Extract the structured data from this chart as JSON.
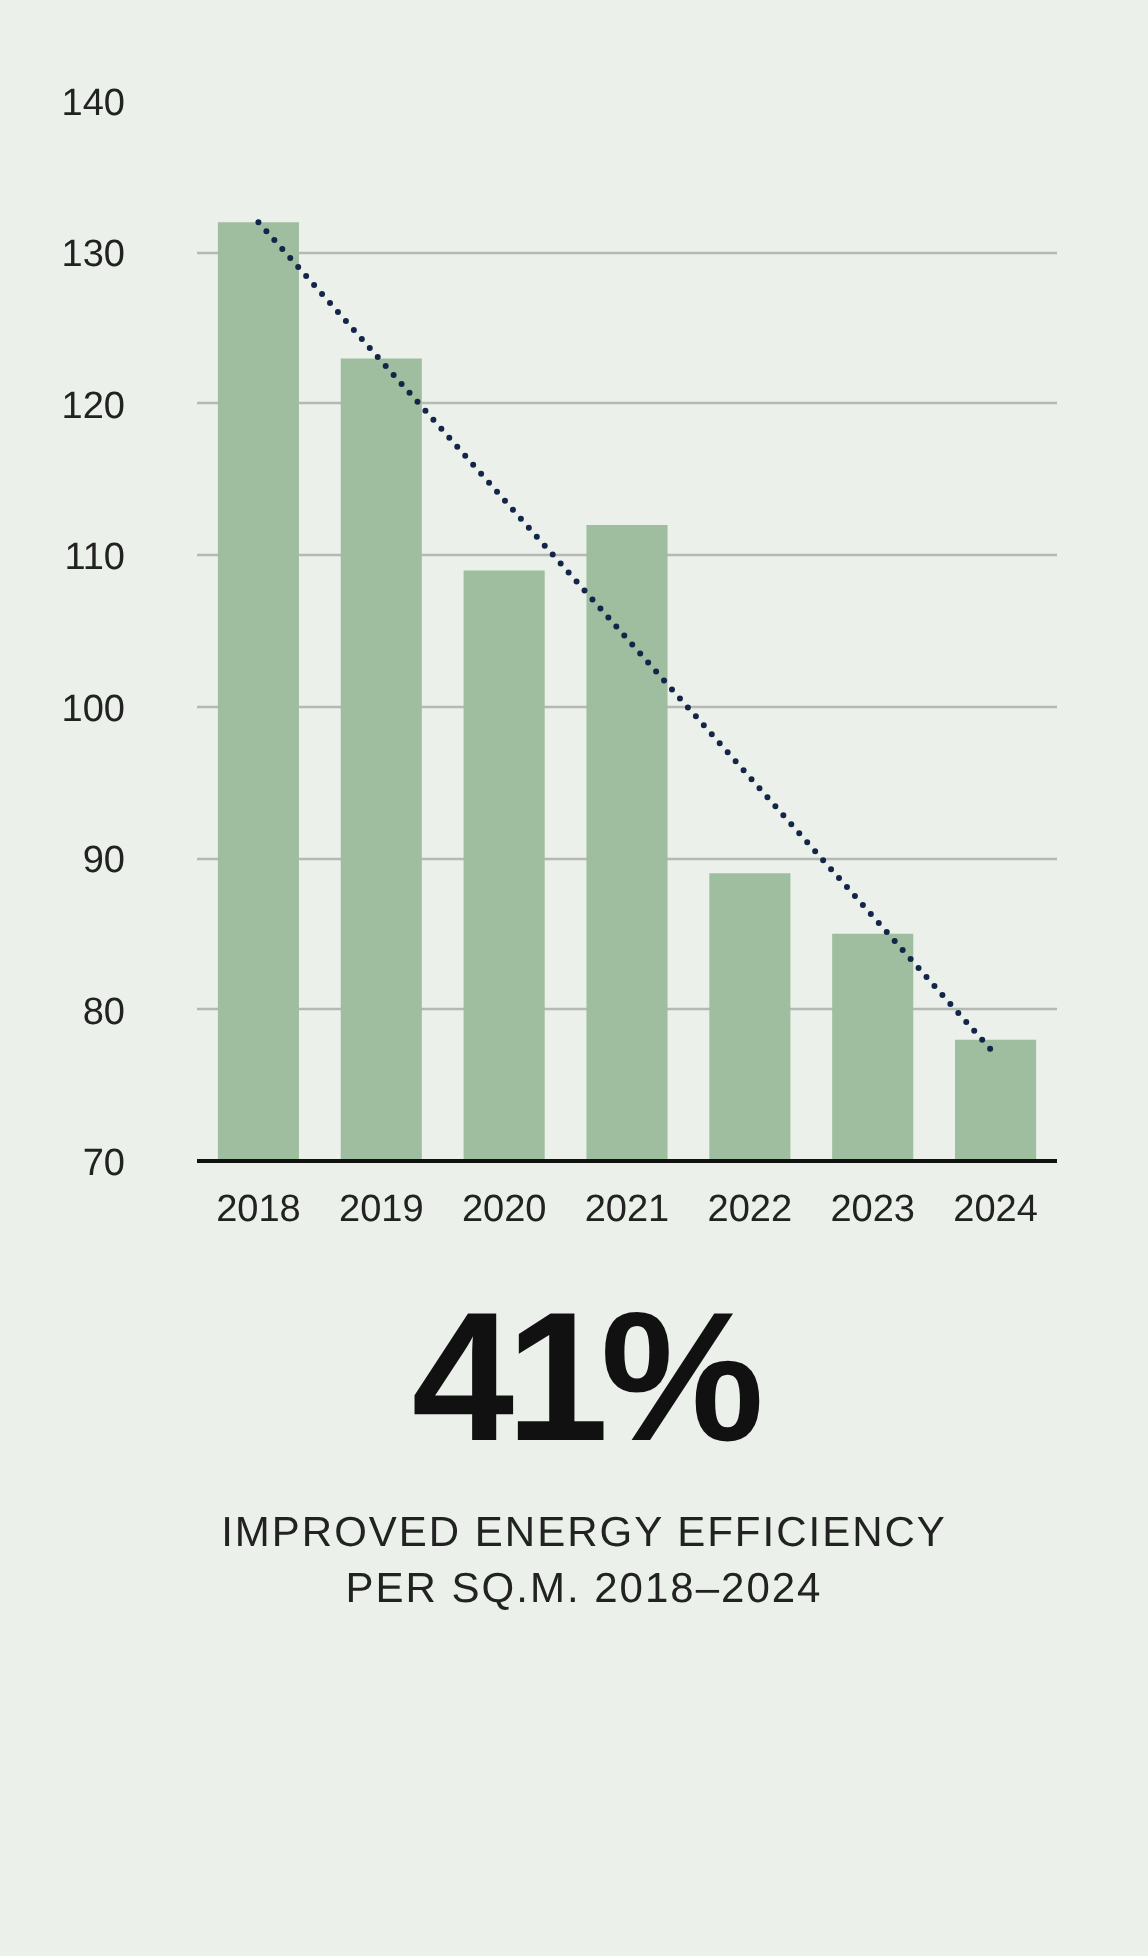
{
  "chart_data": {
    "type": "bar",
    "categories": [
      "2018",
      "2019",
      "2020",
      "2021",
      "2022",
      "2023",
      "2024"
    ],
    "series": [
      {
        "color": "#9fbd9f",
        "values": [
          132,
          123,
          109,
          112,
          89,
          85,
          78
        ]
      },
      {
        "type": "line",
        "color": "#14254a",
        "line_style": "dotted",
        "values": [
          132,
          null,
          null,
          null,
          null,
          null,
          77
        ]
      }
    ],
    "ylim": [
      70,
      140
    ],
    "yticks": [
      70,
      80,
      90,
      100,
      110,
      120,
      130,
      140
    ],
    "grid": "y",
    "annotations": [
      "41%",
      "IMPROVED ENERGY EFFICIENCY\nPER SQ.M. 2018–2024"
    ]
  }
}
